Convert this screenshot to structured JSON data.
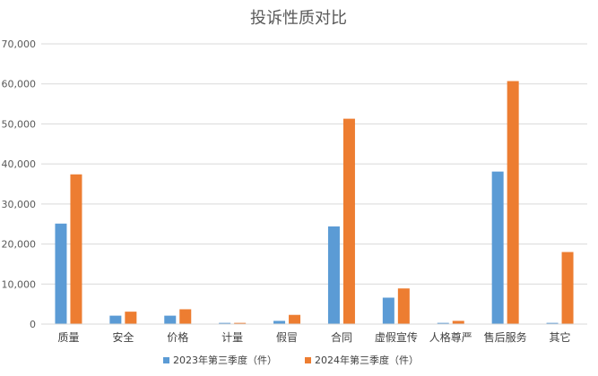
{
  "chart_data": {
    "type": "bar",
    "title": "投诉性质对比",
    "xlabel": "",
    "ylabel": "",
    "ylim": [
      0,
      70000
    ],
    "yticks": [
      "0",
      "10,000",
      "20,000",
      "30,000",
      "40,000",
      "50,000",
      "60,000",
      "70,000"
    ],
    "ytick_values": [
      0,
      10000,
      20000,
      30000,
      40000,
      50000,
      60000,
      70000
    ],
    "grid": true,
    "legend_position": "bottom",
    "categories": [
      "质量",
      "安全",
      "价格",
      "计量",
      "假冒",
      "合同",
      "虚假宣传",
      "人格尊严",
      "售后服务",
      "其它"
    ],
    "series": [
      {
        "name": "2023年第三季度（件）",
        "color": "#5B9BD5",
        "values": [
          25100,
          2100,
          2100,
          300,
          800,
          24400,
          6600,
          300,
          38100,
          300
        ]
      },
      {
        "name": "2024年第三季度（件）",
        "color": "#ED7D31",
        "values": [
          37400,
          3100,
          3700,
          300,
          2300,
          51300,
          8900,
          800,
          60700,
          18000
        ]
      }
    ]
  }
}
